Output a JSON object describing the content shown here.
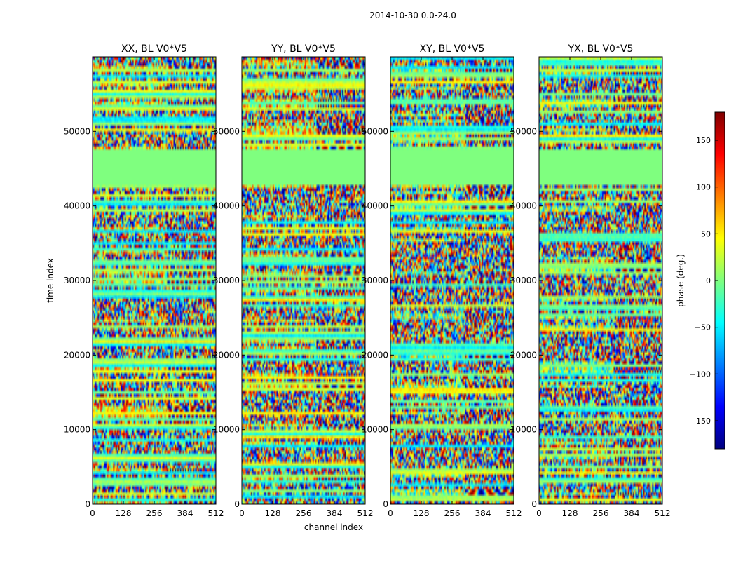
{
  "chart_data": {
    "type": "heatmap",
    "suptitle": "2014-10-30 0.0-24.0",
    "xlabel": "channel index",
    "ylabel": "time index",
    "xlim": [
      0,
      512
    ],
    "ylim": [
      0,
      60000
    ],
    "xticks": [
      0,
      128,
      256,
      384,
      512
    ],
    "yticks": [
      0,
      10000,
      20000,
      30000,
      40000,
      50000
    ],
    "panels": [
      {
        "title": "XX, BL V0*V5"
      },
      {
        "title": "YY, BL V0*V5"
      },
      {
        "title": "XY, BL V0*V5"
      },
      {
        "title": "YX, BL V0*V5"
      }
    ],
    "flagged_time_range": [
      43000,
      47500
    ],
    "colorbar": {
      "label": "phase (deg.)",
      "range": [
        -180,
        180
      ],
      "ticks": [
        -150,
        -100,
        -50,
        0,
        50,
        100,
        150
      ],
      "colormap": "jet",
      "colors": [
        "#00007f",
        "#0000ff",
        "#007fff",
        "#00ffff",
        "#7fff7f",
        "#ffff00",
        "#ff7f00",
        "#ff0000",
        "#7f0000"
      ]
    }
  }
}
